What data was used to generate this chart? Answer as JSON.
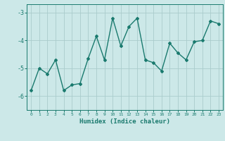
{
  "xlabel": "Humidex (Indice chaleur)",
  "ylabel": "",
  "x": [
    0,
    1,
    2,
    3,
    4,
    5,
    6,
    7,
    8,
    9,
    10,
    11,
    12,
    13,
    14,
    15,
    16,
    17,
    18,
    19,
    20,
    21,
    22,
    23
  ],
  "y": [
    -5.8,
    -5.0,
    -5.2,
    -4.7,
    -5.8,
    -5.6,
    -5.55,
    -4.65,
    -3.85,
    -4.7,
    -3.2,
    -4.2,
    -3.5,
    -3.2,
    -4.7,
    -4.8,
    -5.1,
    -4.1,
    -4.45,
    -4.7,
    -4.05,
    -4.0,
    -3.3,
    -3.4
  ],
  "line_color": "#1a7a6e",
  "marker": "D",
  "marker_size": 2.0,
  "line_width": 1.0,
  "bg_color": "#cce8e8",
  "grid_color": "#aacccc",
  "tick_label_color": "#1a7a6e",
  "axis_color": "#1a7a6e",
  "xlabel_color": "#1a7a6e",
  "ylim": [
    -6.5,
    -2.7
  ],
  "xlim": [
    -0.5,
    23.5
  ],
  "yticks": [
    -6,
    -5,
    -4,
    -3
  ],
  "figsize": [
    3.2,
    2.0
  ],
  "dpi": 100
}
